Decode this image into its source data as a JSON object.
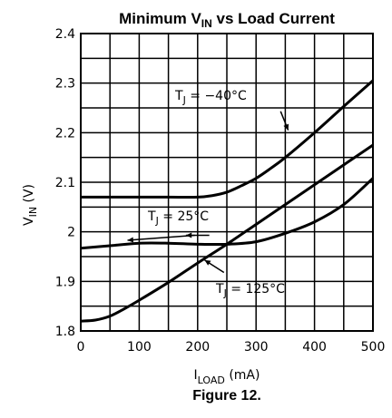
{
  "figure": {
    "title_main": "Minimum V",
    "title_sub": "IN",
    "title_rest": " vs Load Current",
    "caption": "Figure 12."
  },
  "chart_data": {
    "type": "line",
    "title": "Minimum VIN vs Load Current",
    "xlabel": "ILOAD (mA)",
    "ylabel": "VIN (V)",
    "xlim": [
      0,
      500
    ],
    "ylim": [
      1.8,
      2.4
    ],
    "grid": true,
    "x_ticks": [
      0,
      100,
      200,
      300,
      400,
      500
    ],
    "y_ticks": [
      1.8,
      1.9,
      2.0,
      2.1,
      2.2,
      2.3,
      2.4
    ],
    "x_tick_labels": [
      "0",
      "100",
      "200",
      "300",
      "400",
      "500"
    ],
    "y_tick_labels": [
      "1.8",
      "1.9",
      "2",
      "2.1",
      "2.2",
      "2.3",
      "2.4"
    ],
    "series": [
      {
        "name": "TJ = -40°C",
        "x": [
          0,
          50,
          100,
          150,
          200,
          225,
          250,
          275,
          300,
          325,
          350,
          400,
          450,
          500
        ],
        "y": [
          2.07,
          2.07,
          2.07,
          2.07,
          2.07,
          2.073,
          2.08,
          2.093,
          2.108,
          2.128,
          2.15,
          2.2,
          2.253,
          2.305
        ]
      },
      {
        "name": "TJ = 25°C",
        "x": [
          0,
          50,
          100,
          150,
          200,
          250,
          300,
          350,
          400,
          450,
          500
        ],
        "y": [
          1.967,
          1.972,
          1.977,
          1.977,
          1.975,
          1.975,
          1.98,
          1.997,
          2.02,
          2.055,
          2.108
        ]
      },
      {
        "name": "TJ = 125°C",
        "x": [
          0,
          25,
          50,
          75,
          100,
          150,
          200,
          250,
          300,
          350,
          400,
          450,
          500
        ],
        "y": [
          1.82,
          1.822,
          1.83,
          1.845,
          1.862,
          1.898,
          1.937,
          1.975,
          2.015,
          2.055,
          2.095,
          2.135,
          2.175
        ]
      }
    ]
  },
  "annotations": {
    "a40": {
      "prefix": "T",
      "sub": "J",
      "rest": " = −40°C"
    },
    "a25": {
      "prefix": "T",
      "sub": "J",
      "rest": " = 25°C"
    },
    "a125": {
      "prefix": "T",
      "sub": "J",
      "rest": " = 125°C"
    }
  },
  "axis_text": {
    "y_main": "V",
    "y_sub": "IN",
    "y_rest": " (V)",
    "x_main": "I",
    "x_sub": "LOAD",
    "x_rest": " (mA)"
  }
}
